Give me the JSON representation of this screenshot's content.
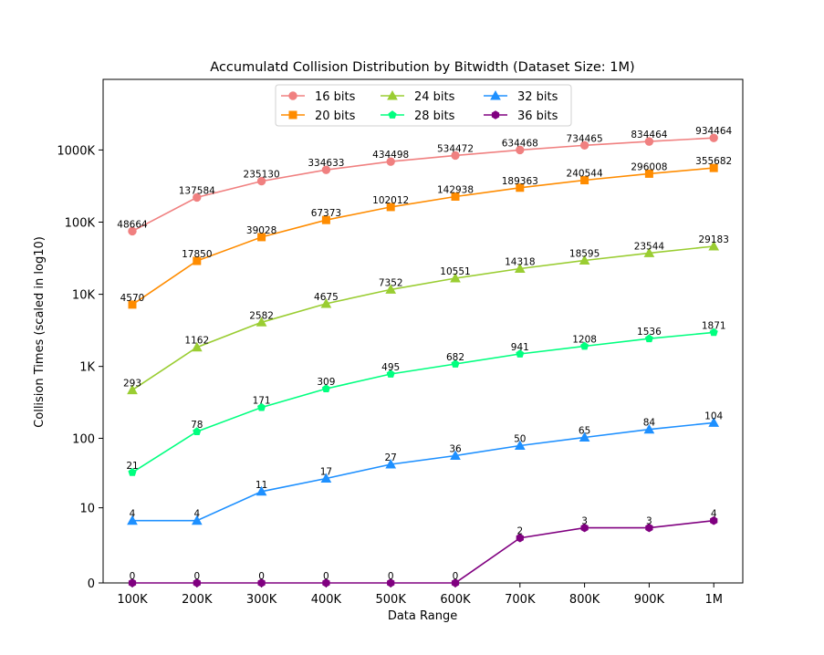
{
  "chart_data": {
    "type": "line",
    "title": "Accumulatd Collision Distribution by Bitwidth (Dataset Size: 1M)",
    "xlabel": "Data Range",
    "ylabel": "Collision Times (scaled in log10)",
    "categories": [
      "100K",
      "200K",
      "300K",
      "400K",
      "500K",
      "600K",
      "700K",
      "800K",
      "900K",
      "1M"
    ],
    "y_scale": "log10(1 + value)",
    "ylim": [
      0,
      7.0
    ],
    "y_ticks": [
      {
        "label": "0",
        "value": 0
      },
      {
        "label": "10",
        "value": 10
      },
      {
        "label": "100",
        "value": 100
      },
      {
        "label": "1K",
        "value": 1000
      },
      {
        "label": "10K",
        "value": 10000
      },
      {
        "label": "100K",
        "value": 100000
      },
      {
        "label": "1000K",
        "value": 1000000
      }
    ],
    "grid": false,
    "legend_position": "top-center",
    "legend_columns": 3,
    "series": [
      {
        "name": "16 bits",
        "color": "#f08080",
        "marker": "circle",
        "values": [
          48664,
          137584,
          235130,
          334633,
          434498,
          534472,
          634468,
          734465,
          834464,
          934464
        ],
        "display_values": [
          75000,
          220000,
          370000,
          530000,
          690000,
          840000,
          1000000,
          1160000,
          1310000,
          1470000
        ]
      },
      {
        "name": "20 bits",
        "color": "#ff8c00",
        "marker": "square",
        "values": [
          4570,
          17850,
          39028,
          67373,
          102012,
          142938,
          189363,
          240544,
          296008,
          355682
        ],
        "display_values": [
          7200,
          29000,
          62000,
          107000,
          162000,
          226000,
          300000,
          381000,
          469000,
          563000
        ]
      },
      {
        "name": "24 bits",
        "color": "#9acd32",
        "marker": "triangle",
        "values": [
          293,
          1162,
          2582,
          4675,
          7352,
          10551,
          14318,
          18595,
          23544,
          29183
        ],
        "display_values": [
          470,
          1840,
          4090,
          7400,
          11640,
          16700,
          22670,
          29440,
          37270,
          46200
        ]
      },
      {
        "name": "28 bits",
        "color": "#00ff7f",
        "marker": "pentagon",
        "values": [
          21,
          78,
          171,
          309,
          495,
          682,
          941,
          1208,
          1536,
          1871
        ],
        "display_values": [
          33,
          124,
          270,
          490,
          785,
          1080,
          1490,
          1910,
          2430,
          2960
        ]
      },
      {
        "name": "32 bits",
        "color": "#1e90ff",
        "marker": "triangle",
        "values": [
          4,
          4,
          11,
          17,
          27,
          36,
          50,
          65,
          84,
          104
        ],
        "display_values": [
          6.3,
          6.3,
          17.5,
          27,
          43,
          57,
          79,
          103,
          133,
          165
        ]
      },
      {
        "name": "36 bits",
        "color": "#800080",
        "marker": "hexagon",
        "values": [
          0,
          0,
          0,
          0,
          0,
          0,
          2,
          3,
          3,
          4
        ],
        "display_values": [
          0,
          0,
          0,
          0,
          0,
          0,
          3.2,
          4.8,
          4.8,
          6.3
        ]
      }
    ]
  }
}
